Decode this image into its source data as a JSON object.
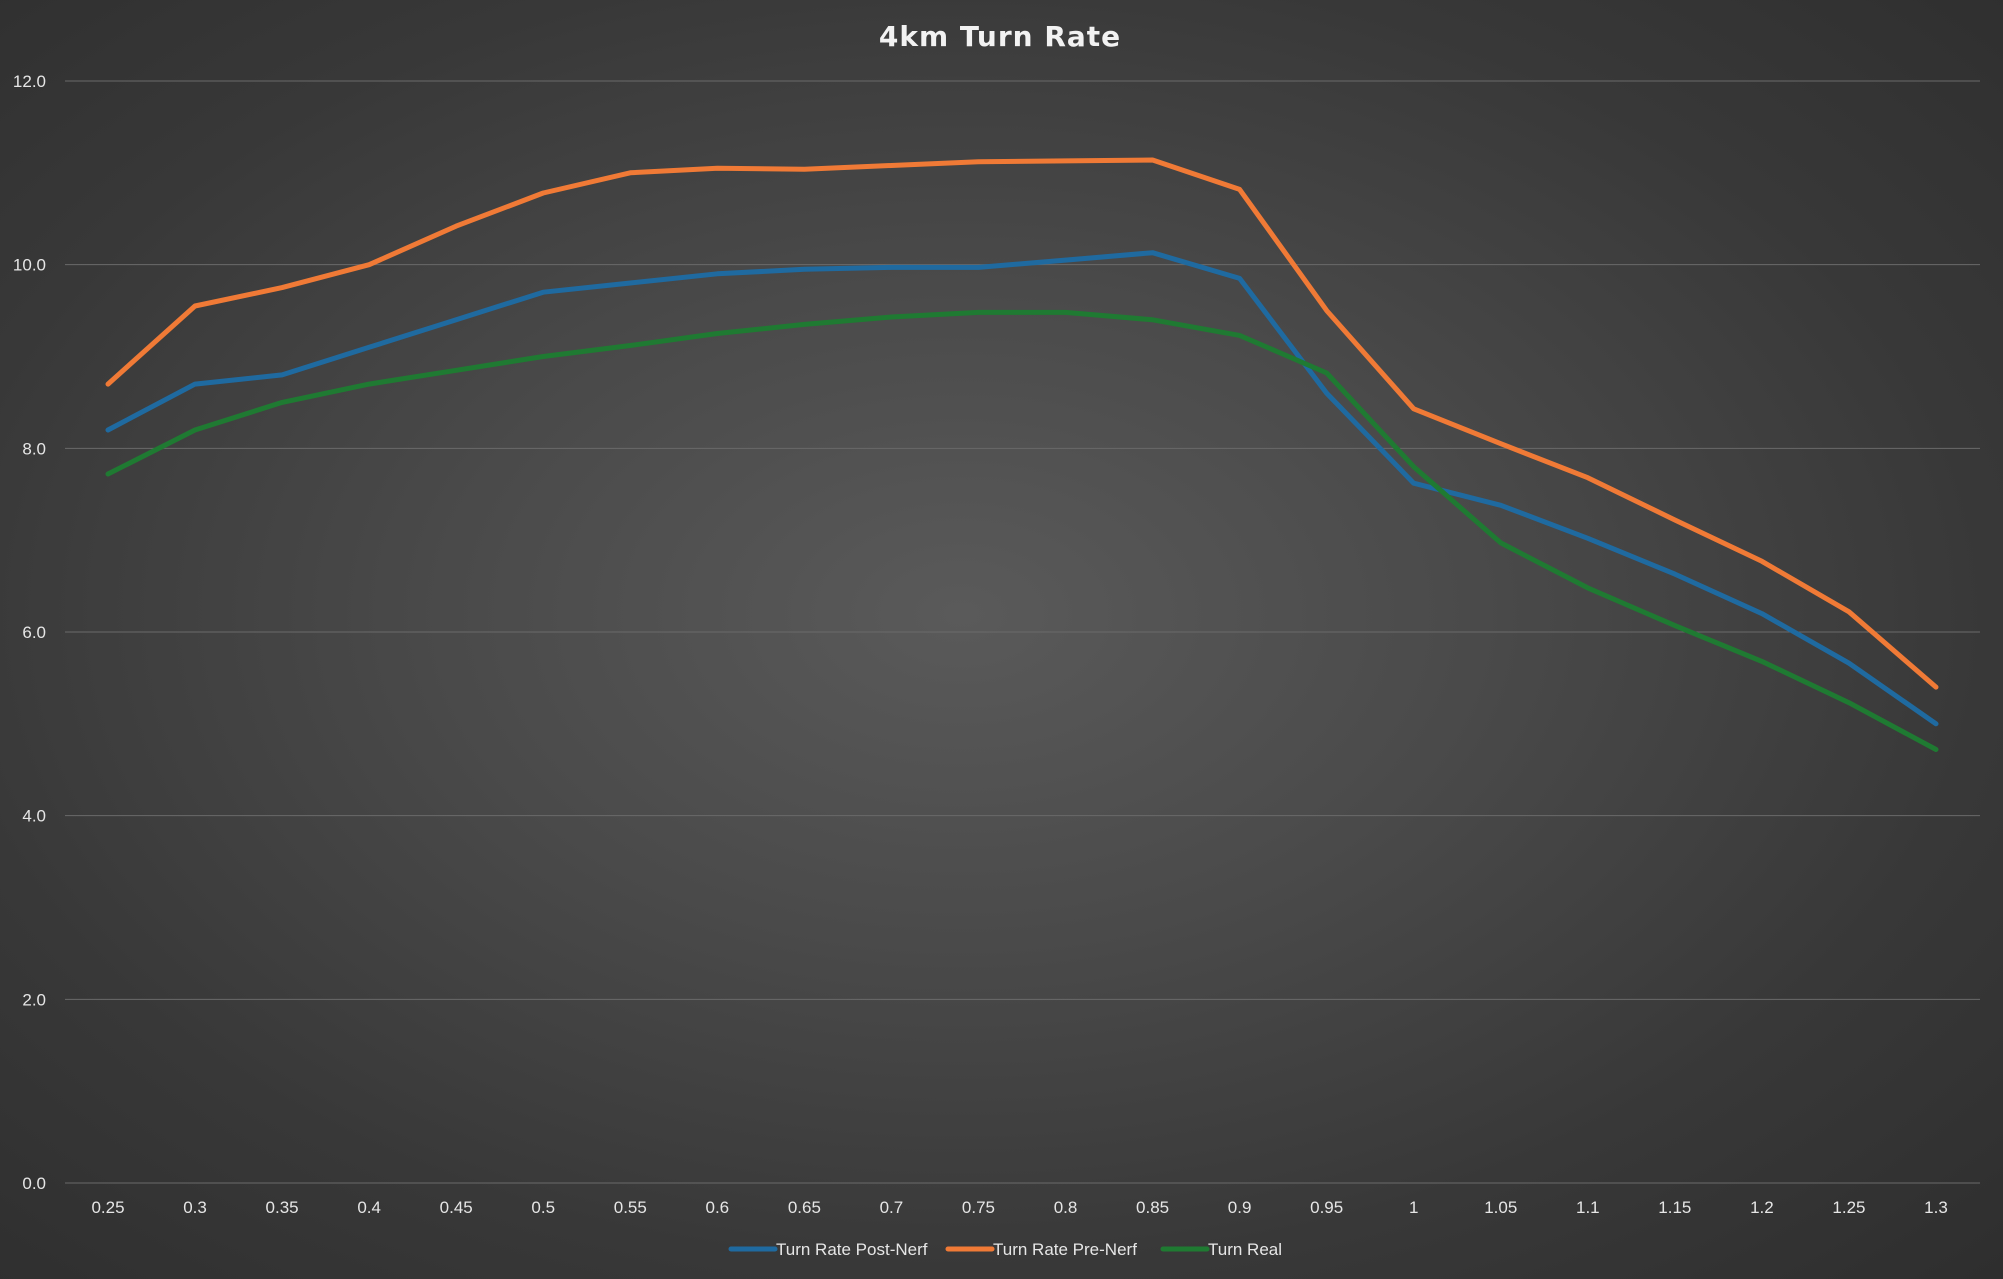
{
  "chart_data": {
    "type": "line",
    "title": "4km Turn Rate",
    "xlabel": "",
    "ylabel": "",
    "categories": [
      "0.25",
      "0.3",
      "0.35",
      "0.4",
      "0.45",
      "0.5",
      "0.55",
      "0.6",
      "0.65",
      "0.7",
      "0.75",
      "0.8",
      "0.85",
      "0.9",
      "0.95",
      "1",
      "1.05",
      "1.1",
      "1.15",
      "1.2",
      "1.25",
      "1.3"
    ],
    "y_ticks": [
      "0.0",
      "2.0",
      "4.0",
      "6.0",
      "8.0",
      "10.0",
      "12.0"
    ],
    "ylim": [
      0,
      12
    ],
    "grid": "horizontal",
    "legend_position": "bottom",
    "series": [
      {
        "name": "Turn Rate Post-Nerf",
        "color": "#1f6aa0",
        "values": [
          8.2,
          8.7,
          8.8,
          9.1,
          9.4,
          9.7,
          9.8,
          9.9,
          9.95,
          9.97,
          9.97,
          10.05,
          10.13,
          9.85,
          8.6,
          7.62,
          7.38,
          7.02,
          6.63,
          6.2,
          5.66,
          5.0
        ]
      },
      {
        "name": "Turn Rate Pre-Nerf",
        "color": "#f07a36",
        "values": [
          8.7,
          9.55,
          9.75,
          10.0,
          10.42,
          10.78,
          11.0,
          11.05,
          11.04,
          11.08,
          11.12,
          11.13,
          11.14,
          10.82,
          9.5,
          8.43,
          8.05,
          7.68,
          7.22,
          6.77,
          6.22,
          5.4
        ]
      },
      {
        "name": "Turn Real",
        "color": "#1f7a32",
        "values": [
          7.72,
          8.2,
          8.5,
          8.7,
          8.85,
          9.0,
          9.12,
          9.25,
          9.35,
          9.43,
          9.48,
          9.48,
          9.4,
          9.23,
          8.82,
          7.8,
          6.97,
          6.48,
          6.07,
          5.68,
          5.23,
          4.72
        ]
      }
    ]
  }
}
